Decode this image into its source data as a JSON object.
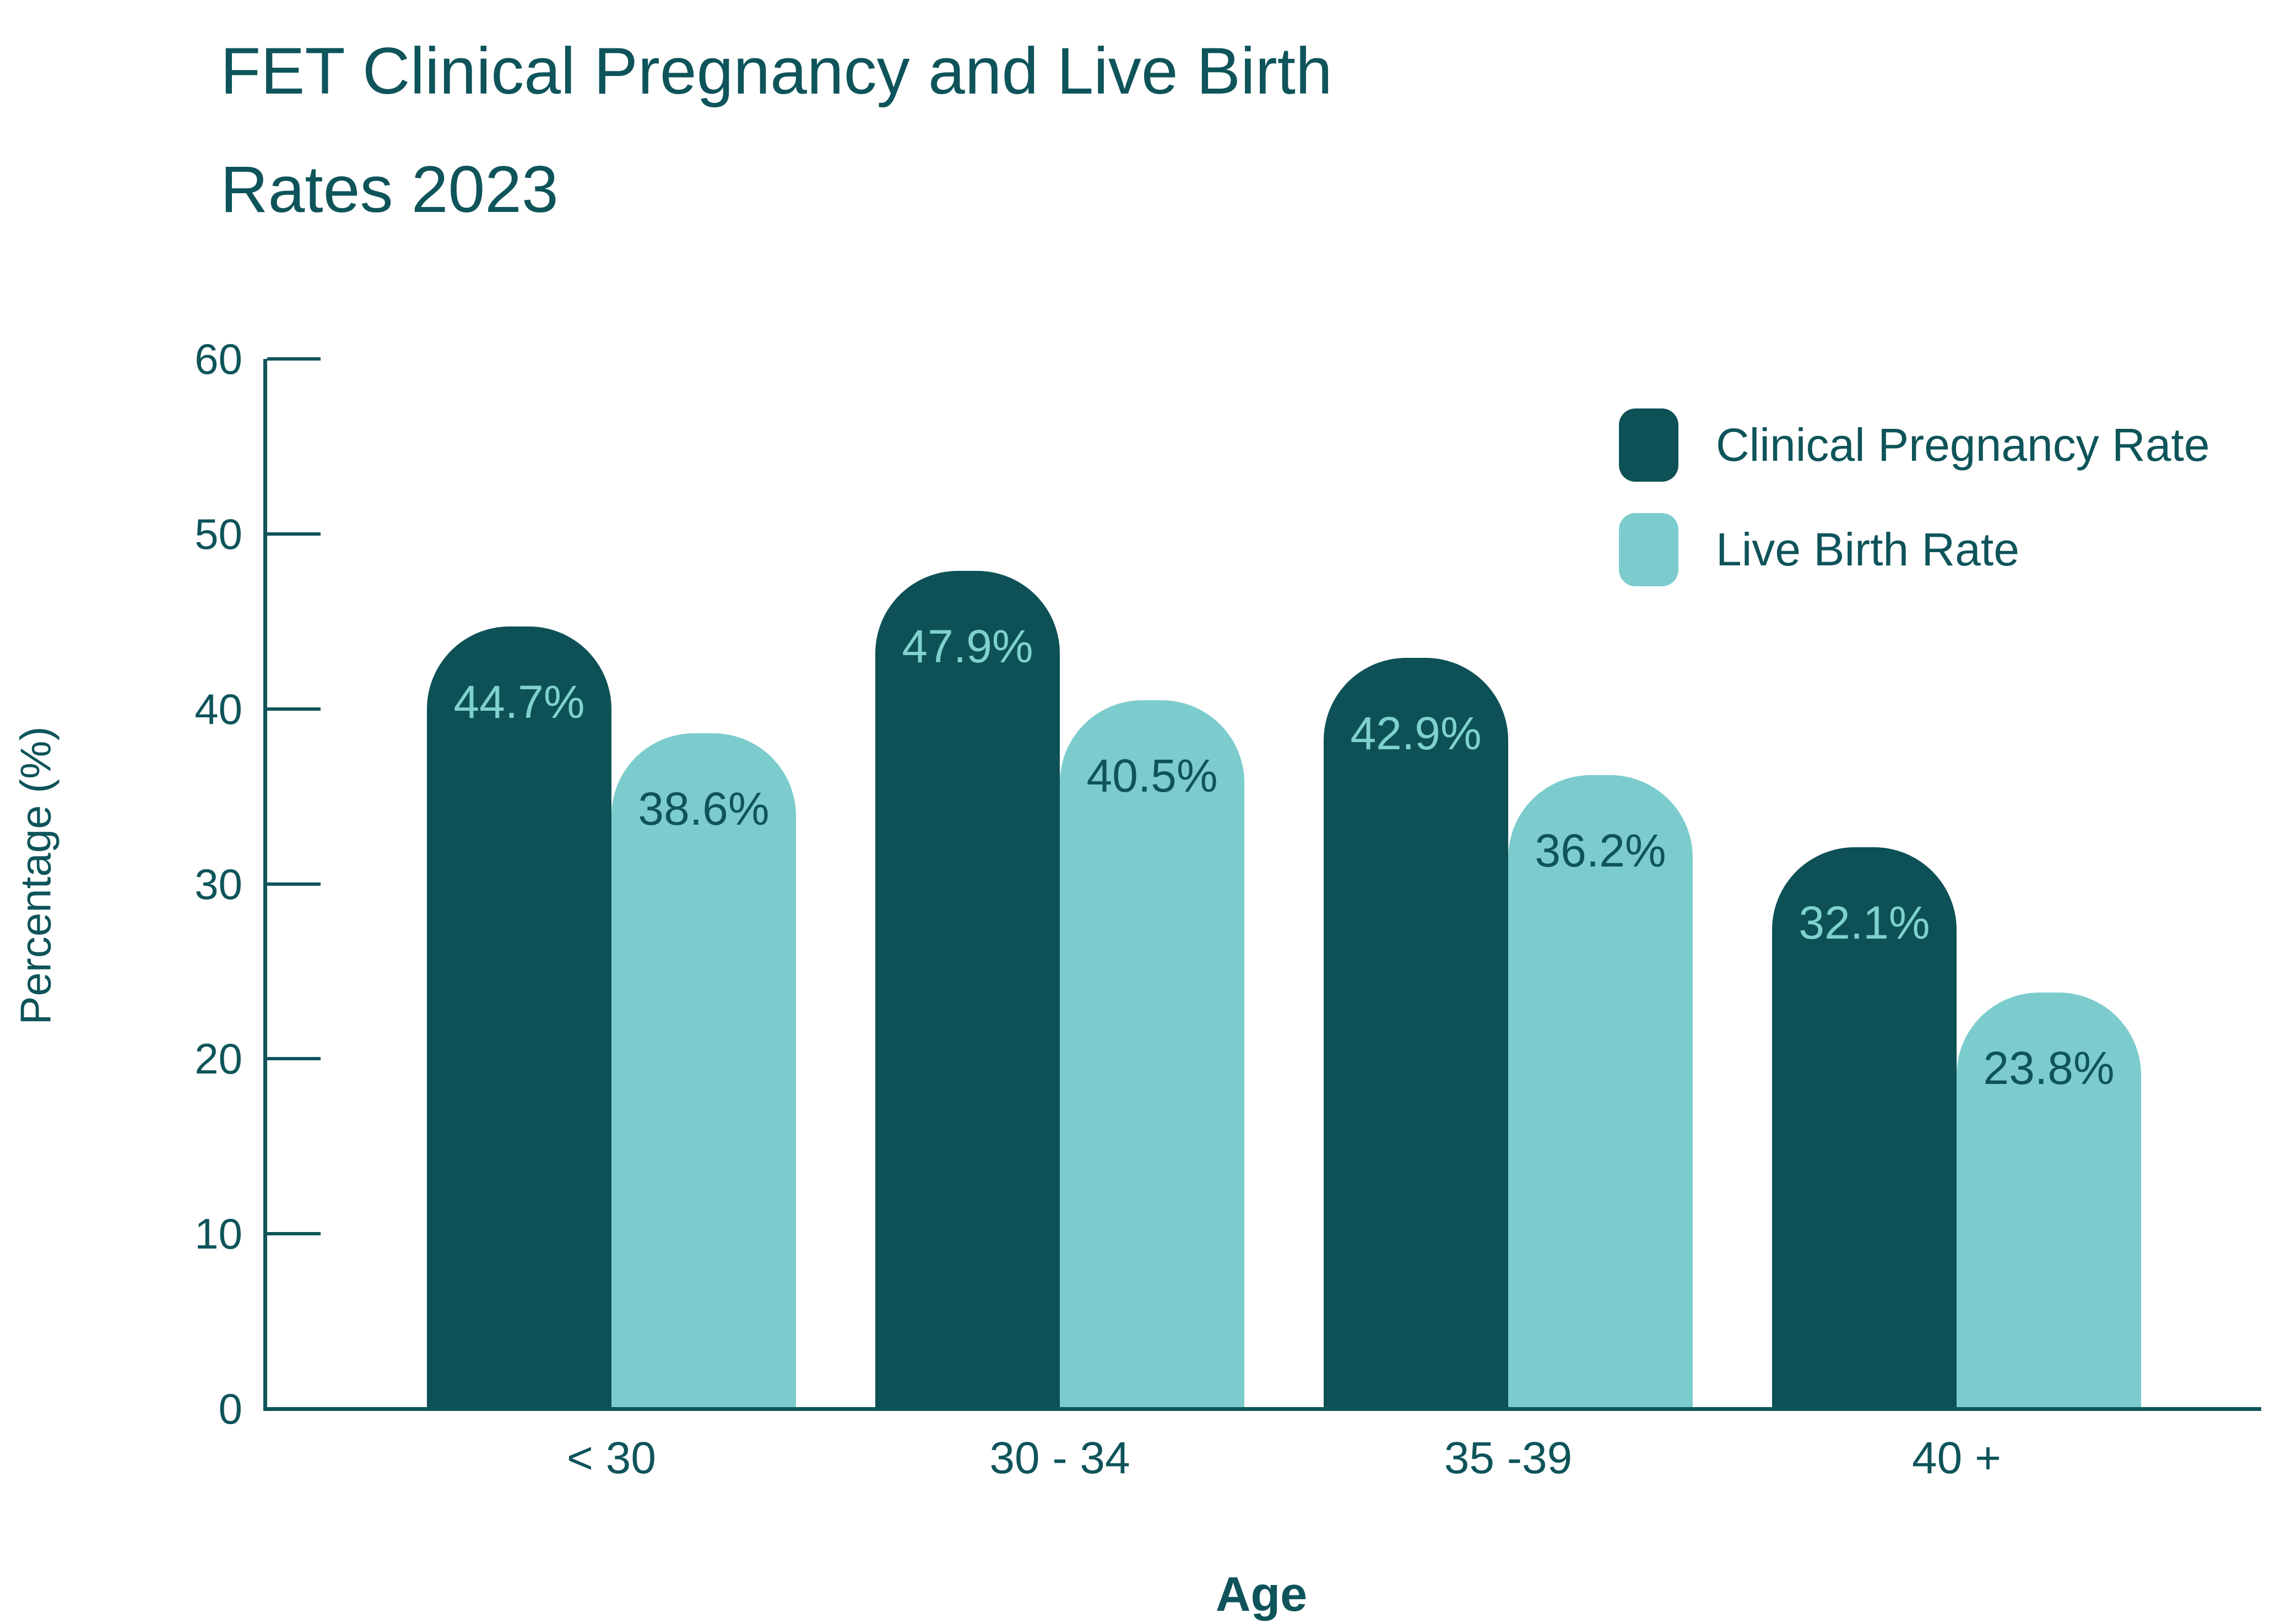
{
  "title": {
    "line1": "FET Clinical Pregnancy and Live Birth",
    "line2": "Rates 2023"
  },
  "colors": {
    "dark_teal": "#0D5156",
    "light_teal": "#7CCCCD",
    "text": "#0E545A",
    "label_on_dark": "#7FD1CE",
    "label_on_light": "#0E545A",
    "axis": "#0E545A",
    "background": "#FFFFFF"
  },
  "chart_data": {
    "type": "bar",
    "title": "FET Clinical Pregnancy and Live Birth Rates 2023",
    "categories": [
      "< 30",
      "30 - 34",
      "35 -39",
      "40 +"
    ],
    "series": [
      {
        "name": "Clinical Pregnancy Rate",
        "color_key": "dark_teal",
        "label_color_key": "label_on_dark",
        "values": [
          44.7,
          47.9,
          42.9,
          32.1
        ],
        "labels": [
          "44.7%",
          "47.9%",
          "42.9%",
          "32.1%"
        ]
      },
      {
        "name": "Live Birth Rate",
        "color_key": "light_teal",
        "label_color_key": "label_on_light",
        "values": [
          38.6,
          40.5,
          36.2,
          23.8
        ],
        "labels": [
          "38.6%",
          "40.5%",
          "36.2%",
          "23.8%"
        ]
      }
    ],
    "xlabel": "Age",
    "ylabel": "Percentage (%)",
    "ylim": [
      0,
      60
    ],
    "yticks": [
      0,
      10,
      20,
      30,
      40,
      50,
      60
    ],
    "grid": false,
    "legend_position": "top-right",
    "bar_style": "rounded-top"
  }
}
